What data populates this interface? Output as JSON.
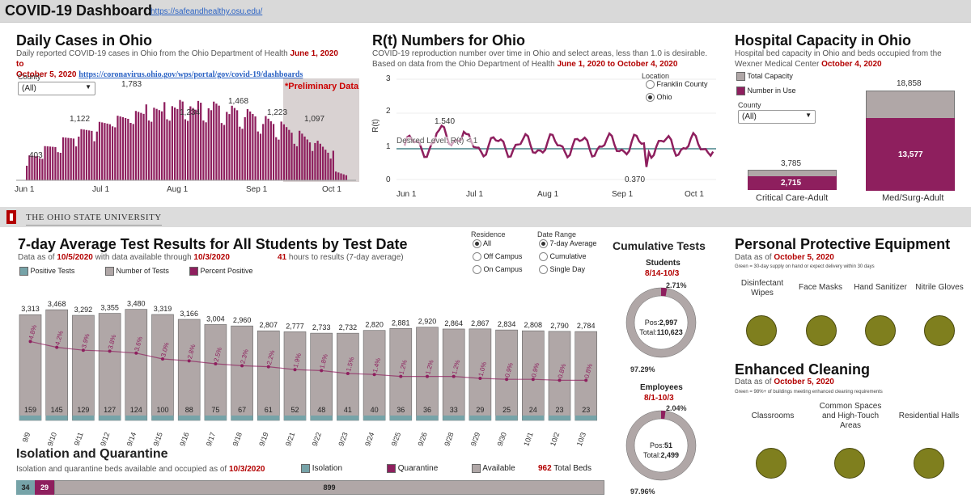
{
  "header": {
    "title": "COVID-19 Dashboard",
    "link": "https://safeandhealthy.osu.edu/"
  },
  "daily": {
    "title": "Daily Cases in Ohio",
    "desc1": "Daily reported COVID-19 cases in Ohio from the Ohio Department of Health",
    "range": "June 1, 2020 to",
    "range2": "October 5, 2020",
    "link": "https://coronavirus.ohio.gov/wps/portal/gov/covid-19/dashboards",
    "county_label": "County",
    "county_value": "(All)",
    "prelim": "*Preliminary Data",
    "xticks": [
      "Jun 1",
      "Jul 1",
      "Aug 1",
      "Sep 1",
      "Oct 1"
    ],
    "labels": [
      "403",
      "1,122",
      "1,783",
      "1,234",
      "1,468",
      "1,223",
      "1,097"
    ]
  },
  "rt": {
    "title": "R(t) Numbers for Ohio",
    "desc1": "COVID-19 reproduction number over time in Ohio and select areas, less than 1.0 is desirable.",
    "desc2": "Based on data from the Ohio Department of Health",
    "range": "June 1, 2020 to October 4, 2020",
    "ylabel": "R(t)",
    "yticks": [
      "3",
      "2",
      "1",
      "0"
    ],
    "xticks": [
      "Jun 1",
      "Jul 1",
      "Aug 1",
      "Sep 1",
      "Oct 1"
    ],
    "desired": "Desired Level: R(t) < 1",
    "peak": "1.540",
    "low": "0.370",
    "location_label": "Location",
    "loc1": "Franklin County",
    "loc2": "Ohio"
  },
  "hospital": {
    "title": "Hospital Capacity in Ohio",
    "desc": "Hospital bed capacity in Ohio and beds occupied from the Wexner Medical Center",
    "date": "October 4, 2020",
    "legend_total": "Total Capacity",
    "legend_use": "Number in Use",
    "county_label": "County",
    "county_value": "(All)",
    "cc_total": "3,785",
    "cc_use": "2,715",
    "cc_label": "Critical Care-Adult",
    "ms_total": "18,858",
    "ms_use": "13,577",
    "ms_label": "Med/Surg-Adult"
  },
  "osu": {
    "name": "The Ohio State University"
  },
  "tests": {
    "title": "7-day Average Test Results for All Students by Test Date",
    "asof": "Data as of",
    "asof_date": "10/5/2020",
    "asof_mid": "with data available through",
    "through": "10/3/2020",
    "hours": "41",
    "hours_text": "hours to results (7-day average)",
    "leg_pos": "Positive Tests",
    "leg_num": "Number of Tests",
    "leg_pct": "Percent Positive",
    "residence_label": "Residence",
    "res": [
      "All",
      "Off Campus",
      "On Campus"
    ],
    "range_label": "Date Range",
    "ranges": [
      "7-day Average",
      "Cumulative",
      "Single Day"
    ]
  },
  "chart_data": {
    "type": "bar",
    "categories": [
      "9/9",
      "9/10",
      "9/11",
      "9/12",
      "9/14",
      "9/15",
      "9/16",
      "9/17",
      "9/18",
      "9/19",
      "9/21",
      "9/22",
      "9/23",
      "9/24",
      "9/25",
      "9/26",
      "9/28",
      "9/29",
      "9/30",
      "10/1",
      "10/2",
      "10/3"
    ],
    "series": [
      {
        "name": "Number of Tests",
        "values": [
          3313,
          3468,
          3292,
          3355,
          3480,
          3319,
          3166,
          3004,
          2960,
          2807,
          2777,
          2733,
          2732,
          2820,
          2881,
          2920,
          2864,
          2867,
          2834,
          2808,
          2790,
          2784
        ]
      },
      {
        "name": "Positive Tests",
        "values": [
          159,
          145,
          129,
          127,
          124,
          100,
          88,
          75,
          67,
          61,
          52,
          48,
          41,
          40,
          36,
          36,
          33,
          29,
          25,
          24,
          23,
          23
        ]
      },
      {
        "name": "Percent Positive",
        "values": [
          4.8,
          4.2,
          3.9,
          3.8,
          3.6,
          3.0,
          2.8,
          2.5,
          2.3,
          2.2,
          1.9,
          1.8,
          1.5,
          1.4,
          1.2,
          1.2,
          1.2,
          1.0,
          0.9,
          0.9,
          0.8,
          0.8
        ]
      }
    ],
    "ylim": [
      0,
      3800
    ]
  },
  "cumulative": {
    "title": "Cumulative Tests",
    "students_label": "Students",
    "students_range": "8/14-10/3",
    "students_pct_pos": "2.71%",
    "students_pct_neg": "97.29%",
    "students_pos": "2,997",
    "students_total": "110,623",
    "employees_label": "Employees",
    "employees_range": "8/1-10/3",
    "employees_pct_pos": "2.04%",
    "employees_pct_neg": "97.96%",
    "employees_pos": "51",
    "employees_total": "2,499",
    "pos_label": "Pos:",
    "total_label": "Total:",
    "students_fraction": 0.0271,
    "employees_fraction": 0.0204
  },
  "ppe": {
    "title": "Personal Protective Equipment",
    "asof": "Data as of",
    "date": "October 5, 2020",
    "note": "Green = 30-day supply on hand or expect delivery within 30 days",
    "items": [
      "Disinfectant Wipes",
      "Face Masks",
      "Hand Sanitizer",
      "Nitrile Gloves"
    ],
    "status_color": "#7f7f1e"
  },
  "cleaning": {
    "title": "Enhanced Cleaning",
    "asof": "Data as of",
    "date": "October 5, 2020",
    "note": "Green = 98%+ of buildings meeting enhanced cleaning requirements",
    "items": [
      "Classrooms",
      "Common Spaces and High-Touch Areas",
      "Residential Halls"
    ]
  },
  "isolation": {
    "title": "Isolation and Quarantine",
    "desc": "Isolation and quarantine beds available and occupied as of",
    "date": "10/3/2020",
    "leg_iso": "Isolation",
    "leg_quar": "Quarantine",
    "leg_avail": "Available",
    "total_num": "962",
    "total_text": "Total Beds",
    "iso": "34",
    "quar": "29",
    "avail": "899"
  },
  "colors": {
    "maroon": "#8e1f5e",
    "gray": "#b0a7a7",
    "teal": "#76a3a8",
    "red": "#b30000",
    "status": "#7f7f1e"
  }
}
